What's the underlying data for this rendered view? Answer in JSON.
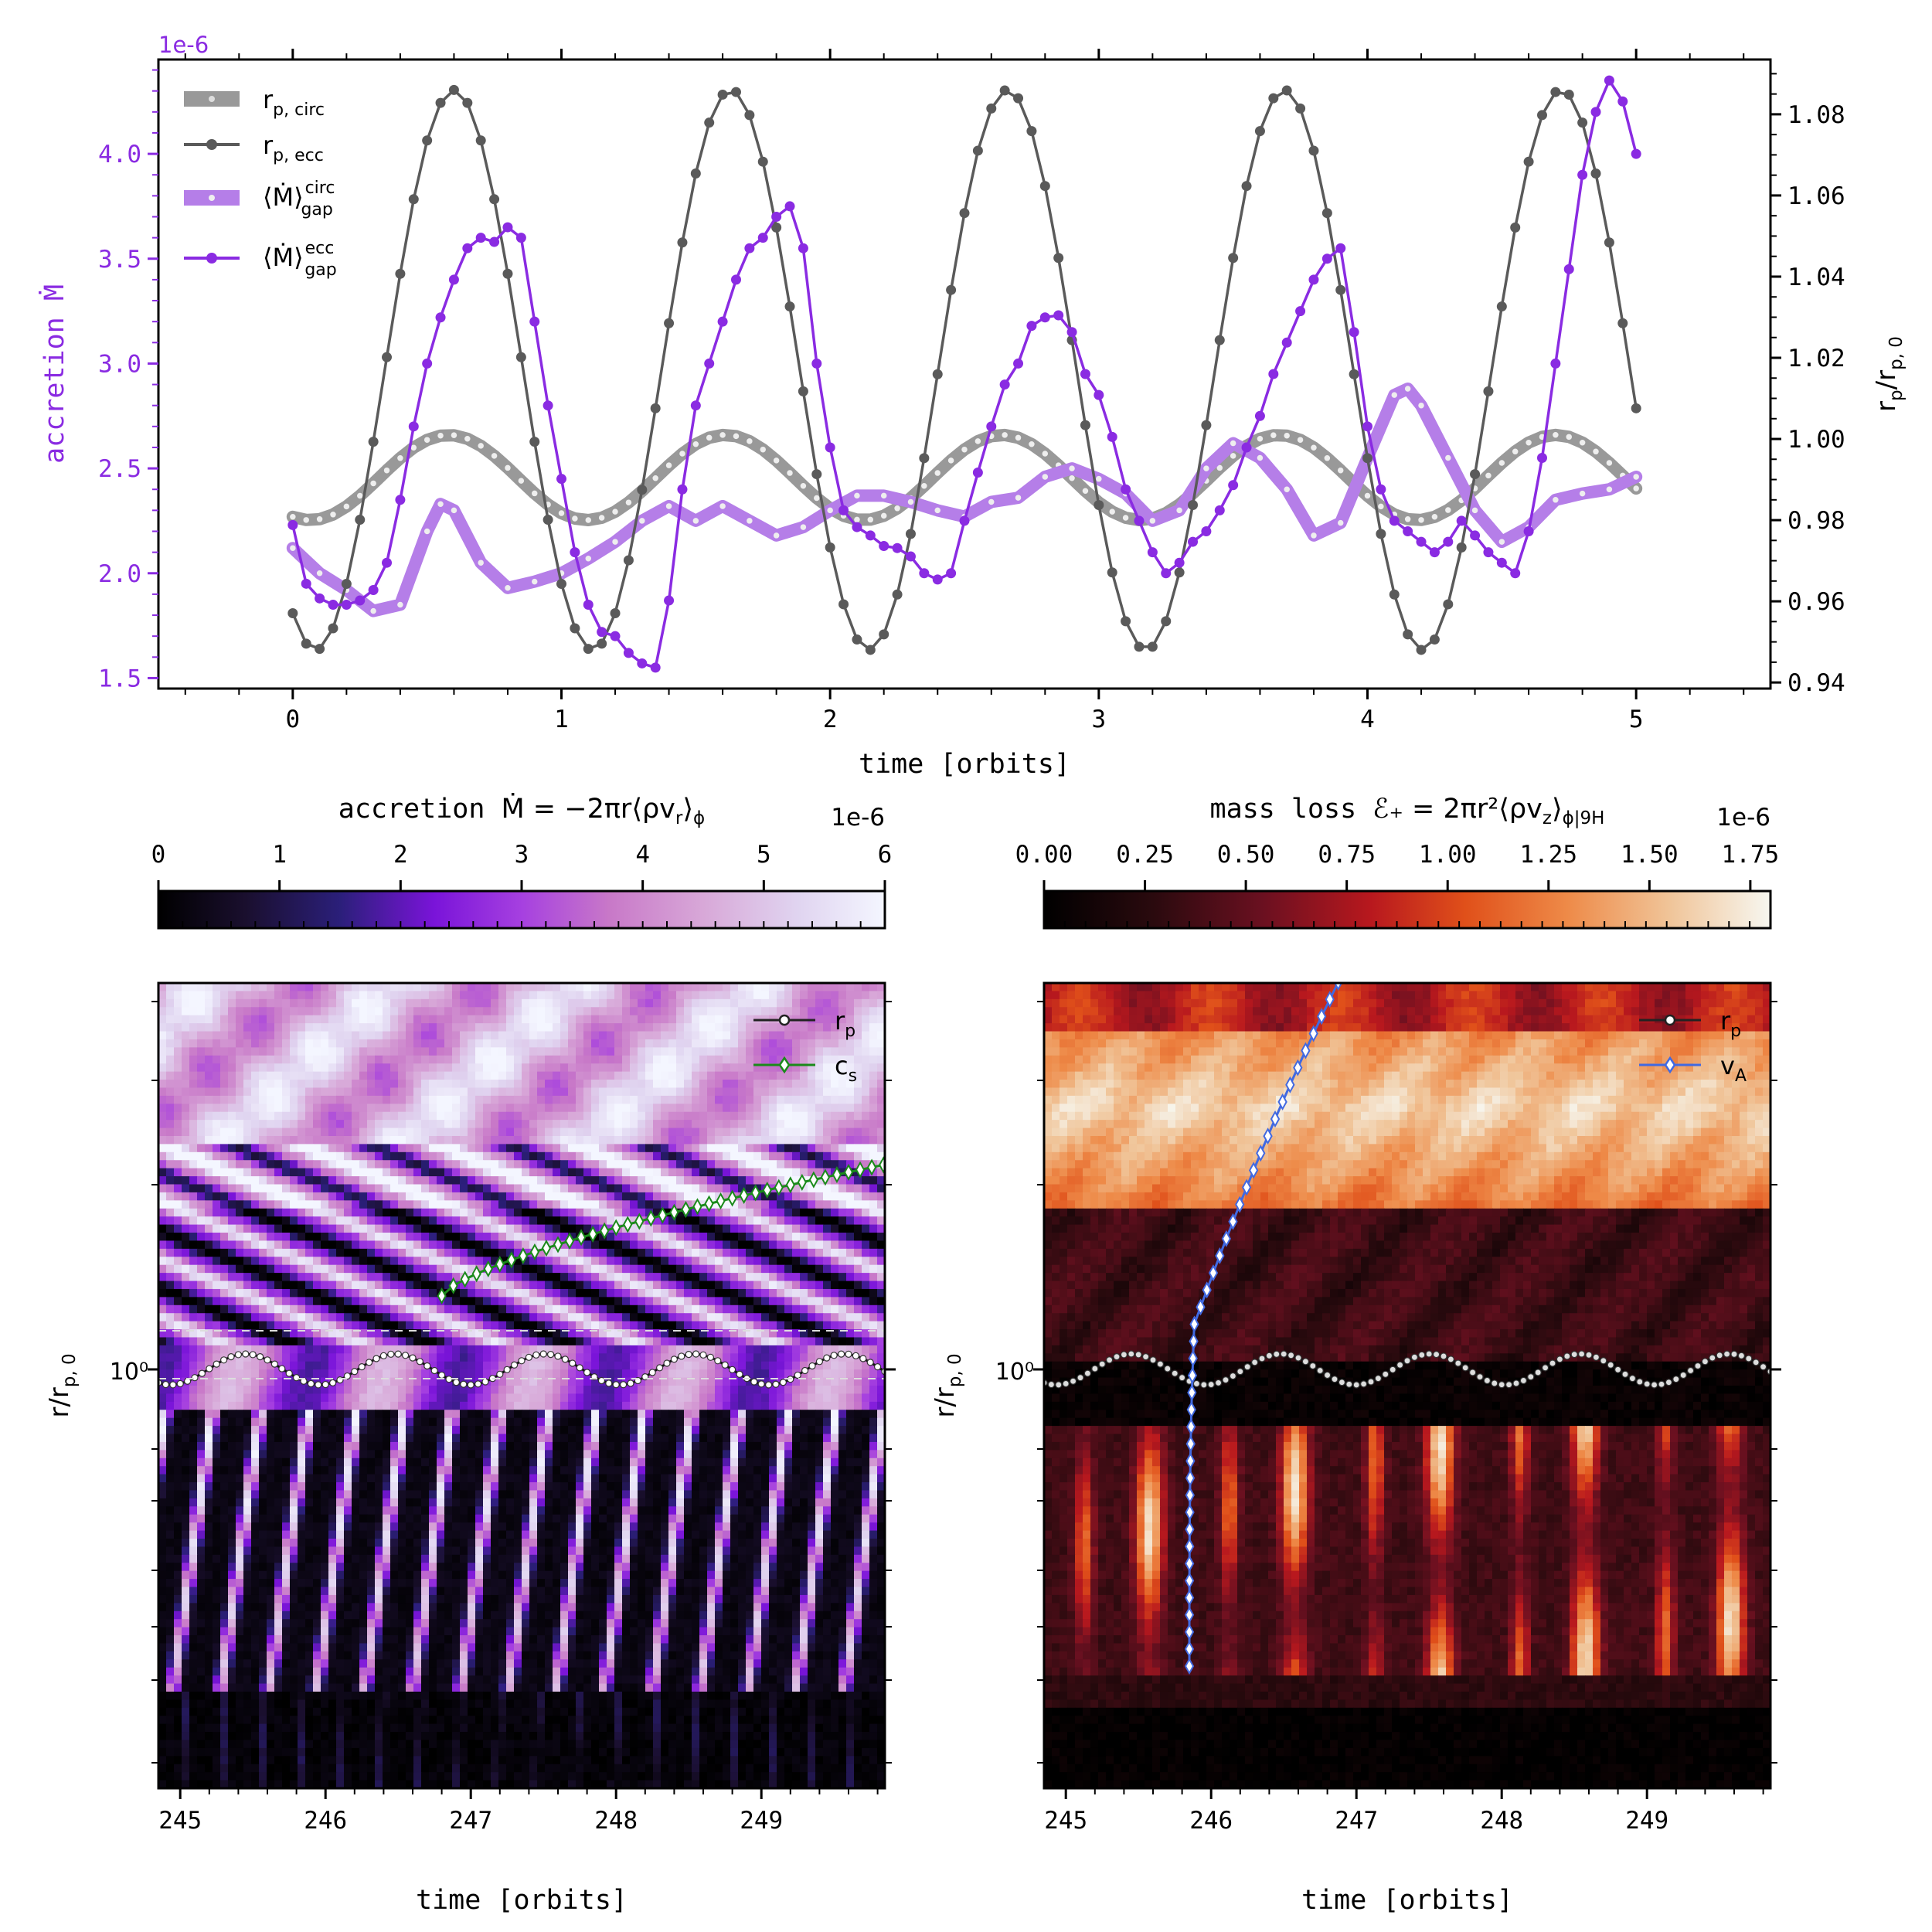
{
  "chart_data": [
    {
      "type": "line",
      "title": "",
      "xlabel": "time [orbits]",
      "ylabel_left": "accretion Ṁ",
      "ylabel_right": "r_p/r_p,0",
      "offset_text": "1e-6",
      "xlim": [
        -0.5,
        5.5
      ],
      "ylim_left": [
        1.45,
        4.45
      ],
      "ylim_right": [
        0.9385,
        1.0935
      ],
      "x_ticks": [
        "0",
        "1",
        "2",
        "3",
        "4",
        "5"
      ],
      "y_left_ticks": [
        "1.5",
        "2.0",
        "2.5",
        "3.0",
        "3.5",
        "4.0"
      ],
      "y_right_ticks": [
        "0.94",
        "0.96",
        "0.98",
        "1.00",
        "1.02",
        "1.04",
        "1.06",
        "1.08"
      ],
      "accent_color": "#8a2be2",
      "legend": {
        "placement": "top-left",
        "items": [
          {
            "label": "r",
            "sub": "p, circ",
            "sup": "",
            "style": "thick-gray"
          },
          {
            "label": "r",
            "sub": "p, ecc",
            "sup": "",
            "style": "thin-gray"
          },
          {
            "label": "⟨Ṁ⟩",
            "sub": "gap",
            "sup": "circ",
            "style": "thick-purple"
          },
          {
            "label": "⟨Ṁ⟩",
            "sub": "gap",
            "sup": "ecc",
            "style": "thin-purple"
          }
        ]
      },
      "series": [
        {
          "name": "r_p,circ",
          "axis": "right",
          "color": "#999999",
          "period": 1.03,
          "mean": 0.9905,
          "amp": 0.0105,
          "phase_peak": 0.58
        },
        {
          "name": "r_p,ecc",
          "axis": "right",
          "color": "#5a5a5a",
          "period": 1.03,
          "mean": 1.017,
          "amp": 0.069,
          "phase_peak": 0.6
        },
        {
          "name": "<Mdot>_gap circ",
          "axis": "left",
          "color": "#b57ee8",
          "points": [
            [
              0.0,
              2.12
            ],
            [
              0.1,
              2.0
            ],
            [
              0.2,
              1.92
            ],
            [
              0.3,
              1.82
            ],
            [
              0.4,
              1.85
            ],
            [
              0.5,
              2.2
            ],
            [
              0.55,
              2.33
            ],
            [
              0.6,
              2.3
            ],
            [
              0.7,
              2.05
            ],
            [
              0.8,
              1.93
            ],
            [
              0.9,
              1.96
            ],
            [
              1.0,
              2.0
            ],
            [
              1.1,
              2.07
            ],
            [
              1.2,
              2.15
            ],
            [
              1.3,
              2.25
            ],
            [
              1.4,
              2.32
            ],
            [
              1.5,
              2.25
            ],
            [
              1.6,
              2.32
            ],
            [
              1.7,
              2.25
            ],
            [
              1.8,
              2.18
            ],
            [
              1.9,
              2.22
            ],
            [
              2.0,
              2.3
            ],
            [
              2.1,
              2.37
            ],
            [
              2.2,
              2.37
            ],
            [
              2.3,
              2.34
            ],
            [
              2.4,
              2.3
            ],
            [
              2.5,
              2.27
            ],
            [
              2.6,
              2.34
            ],
            [
              2.7,
              2.36
            ],
            [
              2.8,
              2.46
            ],
            [
              2.9,
              2.5
            ],
            [
              3.0,
              2.45
            ],
            [
              3.1,
              2.38
            ],
            [
              3.2,
              2.25
            ],
            [
              3.3,
              2.3
            ],
            [
              3.4,
              2.5
            ],
            [
              3.5,
              2.62
            ],
            [
              3.6,
              2.55
            ],
            [
              3.7,
              2.4
            ],
            [
              3.8,
              2.18
            ],
            [
              3.9,
              2.24
            ],
            [
              4.0,
              2.55
            ],
            [
              4.1,
              2.85
            ],
            [
              4.15,
              2.88
            ],
            [
              4.2,
              2.8
            ],
            [
              4.3,
              2.55
            ],
            [
              4.4,
              2.3
            ],
            [
              4.5,
              2.15
            ],
            [
              4.6,
              2.22
            ],
            [
              4.7,
              2.35
            ],
            [
              4.8,
              2.38
            ],
            [
              4.9,
              2.4
            ],
            [
              5.0,
              2.46
            ]
          ]
        },
        {
          "name": "<Mdot>_gap ecc",
          "axis": "left",
          "color": "#8a2be2",
          "points": [
            [
              0.0,
              2.23
            ],
            [
              0.05,
              1.95
            ],
            [
              0.1,
              1.88
            ],
            [
              0.15,
              1.85
            ],
            [
              0.2,
              1.85
            ],
            [
              0.25,
              1.87
            ],
            [
              0.3,
              1.92
            ],
            [
              0.35,
              2.05
            ],
            [
              0.4,
              2.35
            ],
            [
              0.45,
              2.7
            ],
            [
              0.5,
              3.0
            ],
            [
              0.55,
              3.22
            ],
            [
              0.6,
              3.4
            ],
            [
              0.65,
              3.55
            ],
            [
              0.7,
              3.6
            ],
            [
              0.75,
              3.58
            ],
            [
              0.8,
              3.65
            ],
            [
              0.85,
              3.6
            ],
            [
              0.9,
              3.2
            ],
            [
              0.95,
              2.8
            ],
            [
              1.0,
              2.45
            ],
            [
              1.05,
              2.1
            ],
            [
              1.1,
              1.85
            ],
            [
              1.15,
              1.72
            ],
            [
              1.2,
              1.7
            ],
            [
              1.25,
              1.62
            ],
            [
              1.3,
              1.57
            ],
            [
              1.35,
              1.55
            ],
            [
              1.4,
              1.87
            ],
            [
              1.45,
              2.4
            ],
            [
              1.5,
              2.8
            ],
            [
              1.55,
              3.0
            ],
            [
              1.6,
              3.2
            ],
            [
              1.65,
              3.4
            ],
            [
              1.7,
              3.55
            ],
            [
              1.75,
              3.6
            ],
            [
              1.8,
              3.7
            ],
            [
              1.85,
              3.75
            ],
            [
              1.9,
              3.55
            ],
            [
              1.95,
              3.0
            ],
            [
              2.0,
              2.6
            ],
            [
              2.05,
              2.3
            ],
            [
              2.1,
              2.22
            ],
            [
              2.15,
              2.18
            ],
            [
              2.2,
              2.13
            ],
            [
              2.25,
              2.12
            ],
            [
              2.3,
              2.08
            ],
            [
              2.35,
              2.0
            ],
            [
              2.4,
              1.97
            ],
            [
              2.45,
              2.0
            ],
            [
              2.5,
              2.25
            ],
            [
              2.55,
              2.48
            ],
            [
              2.6,
              2.7
            ],
            [
              2.65,
              2.9
            ],
            [
              2.7,
              3.0
            ],
            [
              2.75,
              3.18
            ],
            [
              2.8,
              3.22
            ],
            [
              2.85,
              3.23
            ],
            [
              2.9,
              3.15
            ],
            [
              2.95,
              2.95
            ],
            [
              3.0,
              2.85
            ],
            [
              3.05,
              2.65
            ],
            [
              3.1,
              2.4
            ],
            [
              3.15,
              2.25
            ],
            [
              3.2,
              2.1
            ],
            [
              3.25,
              2.0
            ],
            [
              3.3,
              2.05
            ],
            [
              3.35,
              2.15
            ],
            [
              3.4,
              2.2
            ],
            [
              3.45,
              2.3
            ],
            [
              3.5,
              2.42
            ],
            [
              3.55,
              2.6
            ],
            [
              3.6,
              2.75
            ],
            [
              3.65,
              2.95
            ],
            [
              3.7,
              3.1
            ],
            [
              3.75,
              3.25
            ],
            [
              3.8,
              3.4
            ],
            [
              3.85,
              3.5
            ],
            [
              3.9,
              3.55
            ],
            [
              3.95,
              3.15
            ],
            [
              4.0,
              2.7
            ],
            [
              4.05,
              2.4
            ],
            [
              4.1,
              2.25
            ],
            [
              4.15,
              2.2
            ],
            [
              4.2,
              2.15
            ],
            [
              4.25,
              2.1
            ],
            [
              4.3,
              2.15
            ],
            [
              4.35,
              2.25
            ],
            [
              4.4,
              2.18
            ],
            [
              4.45,
              2.1
            ],
            [
              4.5,
              2.05
            ],
            [
              4.55,
              2.0
            ],
            [
              4.6,
              2.2
            ],
            [
              4.65,
              2.55
            ],
            [
              4.7,
              3.0
            ],
            [
              4.75,
              3.45
            ],
            [
              4.8,
              3.9
            ],
            [
              4.85,
              4.2
            ],
            [
              4.9,
              4.35
            ],
            [
              4.95,
              4.25
            ],
            [
              5.0,
              4.0
            ]
          ]
        }
      ]
    },
    {
      "type": "heatmap",
      "title": "accretion Ṁ = −2πr⟨ρv̄r⟩ϕ",
      "title_prefix": "accretion ",
      "title_formula": "Ṁ = −2πr⟨ρv",
      "title_sub": "r",
      "title_close": "⟩",
      "title_sub2": "ϕ",
      "xlabel": "time [orbits]",
      "ylabel": "r/r",
      "ylabel_sub": "p, 0",
      "colormap": "magenta",
      "colorbar_range": [
        0,
        6
      ],
      "colorbar_ticks": [
        "0",
        "1",
        "2",
        "3",
        "4",
        "5",
        "6"
      ],
      "colorbar_offset": "1e-6",
      "xlim": [
        244.85,
        249.85
      ],
      "x_ticks": [
        "245",
        "246",
        "247",
        "248",
        "249"
      ],
      "y_tick_label": "10⁰",
      "legend": {
        "placement": "top-right",
        "items": [
          {
            "label": "r",
            "sub": "p"
          },
          {
            "label": "c",
            "sub": "s"
          }
        ]
      },
      "rp_curve": {
        "period": 1.03,
        "color": "#ffffff"
      },
      "cs_curve": {
        "color": "#1a8a1a",
        "x_start": 246.8,
        "x_end": 249.85
      }
    },
    {
      "type": "heatmap",
      "title": "mass loss ℰ+ = 2πr²⟨ρvz⟩ϕ|9H",
      "title_prefix": "mass loss ",
      "title_formula": "ℰ₊ = 2πr²⟨ρv",
      "title_sub": "z",
      "title_close": "⟩",
      "title_sub2": "ϕ|9H",
      "xlabel": "time [orbits]",
      "ylabel": "r/r",
      "ylabel_sub": "p, 0",
      "colormap": "gist_heat",
      "colorbar_range": [
        0,
        1.8
      ],
      "colorbar_ticks": [
        "0.00",
        "0.25",
        "0.50",
        "0.75",
        "1.00",
        "1.25",
        "1.50",
        "1.75"
      ],
      "colorbar_offset": "1e-6",
      "xlim": [
        244.85,
        249.85
      ],
      "x_ticks": [
        "245",
        "246",
        "247",
        "248",
        "249"
      ],
      "y_tick_label": "10⁰",
      "legend": {
        "placement": "top-right",
        "items": [
          {
            "label": "r",
            "sub": "p"
          },
          {
            "label": "v",
            "sub": "A"
          }
        ]
      },
      "rp_curve": {
        "period": 1.03,
        "color": "#dddddd"
      },
      "va_curve": {
        "color": "#4169e1",
        "x_start": 245.85,
        "x_end": 246.85
      }
    }
  ]
}
